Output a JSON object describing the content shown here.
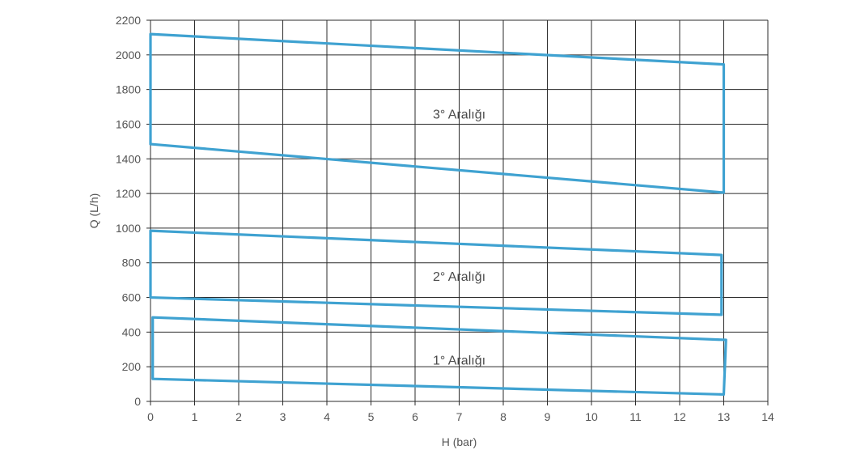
{
  "chart_data": {
    "type": "area",
    "xlabel": "H (bar)",
    "ylabel": "Q (L/h)",
    "xlim": [
      0,
      14
    ],
    "ylim": [
      0,
      2200
    ],
    "x_ticks": [
      0,
      1,
      2,
      3,
      4,
      5,
      6,
      7,
      8,
      9,
      10,
      11,
      12,
      13,
      14
    ],
    "y_ticks": [
      0,
      200,
      400,
      600,
      800,
      1000,
      1200,
      1400,
      1600,
      1800,
      2000,
      2200
    ],
    "grid": true,
    "colors": {
      "region": "#3fa2d1",
      "grid": "#2b2b2b",
      "text": "#555555"
    },
    "regions": [
      {
        "name": "1° Aralığı",
        "polygon": [
          [
            0.05,
            130
          ],
          [
            0.05,
            485
          ],
          [
            13.05,
            355
          ],
          [
            13.0,
            40
          ]
        ],
        "label_at": [
          7.0,
          240
        ]
      },
      {
        "name": "2° Aralığı",
        "polygon": [
          [
            0.0,
            600
          ],
          [
            0.0,
            985
          ],
          [
            12.95,
            845
          ],
          [
            12.95,
            500
          ]
        ],
        "label_at": [
          7.0,
          725
        ]
      },
      {
        "name": "3° Aralığı",
        "polygon": [
          [
            0.0,
            1485
          ],
          [
            0.0,
            2120
          ],
          [
            13.0,
            1945
          ],
          [
            13.0,
            1205
          ]
        ],
        "label_at": [
          7.0,
          1660
        ]
      }
    ]
  }
}
